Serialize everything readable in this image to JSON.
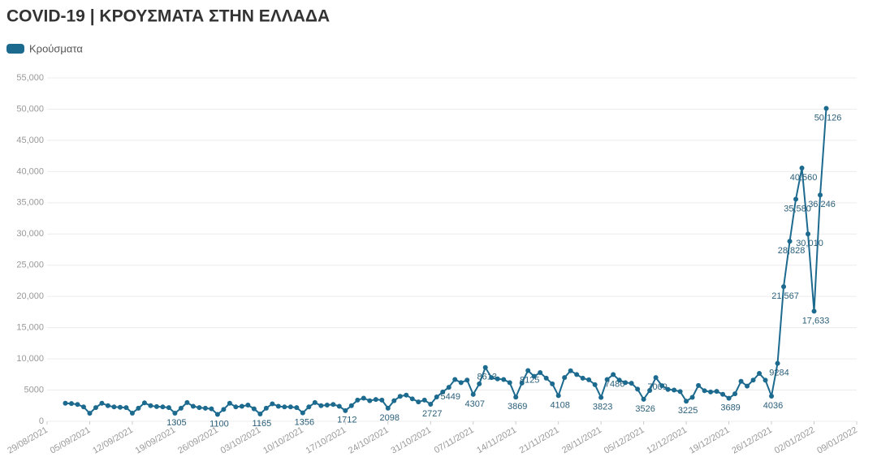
{
  "chart_data": {
    "type": "line",
    "title": "COVID-19 | ΚΡΟΥΣΜΑΤΑ ΣΤΗΝ ΕΛΛΑΔΑ",
    "xlim": [
      "29/08/2021",
      "09/01/2022"
    ],
    "xticks": [
      "29/08/2021",
      "05/09/2021",
      "12/09/2021",
      "19/09/2021",
      "26/09/2021",
      "03/10/2021",
      "10/10/2021",
      "17/10/2021",
      "24/10/2021",
      "31/10/2021",
      "07/11/2021",
      "14/11/2021",
      "21/11/2021",
      "28/11/2021",
      "05/12/2021",
      "12/12/2021",
      "19/12/2021",
      "26/12/2021",
      "02/01/2022",
      "09/01/2022"
    ],
    "ylim": [
      0,
      55000
    ],
    "yticks": [
      0,
      {
        "value": 5000,
        "label": "5000"
      },
      {
        "value": 10000,
        "label": "10,000"
      },
      {
        "value": 15000,
        "label": "15,000"
      },
      {
        "value": 20000,
        "label": "20,000"
      },
      {
        "value": 25000,
        "label": "25,000"
      },
      {
        "value": 30000,
        "label": "30,000"
      },
      {
        "value": 35000,
        "label": "35,000"
      },
      {
        "value": 40000,
        "label": "40,000"
      },
      {
        "value": 45000,
        "label": "45,000"
      },
      {
        "value": 50000,
        "label": "50,000"
      },
      {
        "value": 55000,
        "label": "55,000"
      }
    ],
    "grid": true,
    "legend": "top-left",
    "x": [
      "01/09/2021",
      "02/09/2021",
      "03/09/2021",
      "04/09/2021",
      "05/09/2021",
      "06/09/2021",
      "07/09/2021",
      "08/09/2021",
      "09/09/2021",
      "10/09/2021",
      "11/09/2021",
      "12/09/2021",
      "13/09/2021",
      "14/09/2021",
      "15/09/2021",
      "16/09/2021",
      "17/09/2021",
      "18/09/2021",
      "19/09/2021",
      "20/09/2021",
      "21/09/2021",
      "22/09/2021",
      "23/09/2021",
      "24/09/2021",
      "25/09/2021",
      "26/09/2021",
      "27/09/2021",
      "28/09/2021",
      "29/09/2021",
      "30/09/2021",
      "01/10/2021",
      "02/10/2021",
      "03/10/2021",
      "04/10/2021",
      "05/10/2021",
      "06/10/2021",
      "07/10/2021",
      "08/10/2021",
      "09/10/2021",
      "10/10/2021",
      "11/10/2021",
      "12/10/2021",
      "13/10/2021",
      "14/10/2021",
      "15/10/2021",
      "16/10/2021",
      "17/10/2021",
      "18/10/2021",
      "19/10/2021",
      "20/10/2021",
      "21/10/2021",
      "22/10/2021",
      "23/10/2021",
      "24/10/2021",
      "25/10/2021",
      "26/10/2021",
      "27/10/2021",
      "28/10/2021",
      "29/10/2021",
      "30/10/2021",
      "31/10/2021",
      "01/11/2021",
      "02/11/2021",
      "03/11/2021",
      "04/11/2021",
      "05/11/2021",
      "06/11/2021",
      "07/11/2021",
      "08/11/2021",
      "09/11/2021",
      "10/11/2021",
      "11/11/2021",
      "12/11/2021",
      "13/11/2021",
      "14/11/2021",
      "15/11/2021",
      "16/11/2021",
      "17/11/2021",
      "18/11/2021",
      "19/11/2021",
      "20/11/2021",
      "21/11/2021",
      "22/11/2021",
      "23/11/2021",
      "24/11/2021",
      "25/11/2021",
      "26/11/2021",
      "27/11/2021",
      "28/11/2021",
      "29/11/2021",
      "30/11/2021",
      "01/12/2021",
      "02/12/2021",
      "03/12/2021",
      "04/12/2021",
      "05/12/2021",
      "06/12/2021",
      "07/12/2021",
      "08/12/2021",
      "09/12/2021",
      "10/12/2021",
      "11/12/2021",
      "12/12/2021",
      "13/12/2021",
      "14/12/2021",
      "15/12/2021",
      "16/12/2021",
      "17/12/2021",
      "18/12/2021",
      "19/12/2021",
      "20/12/2021",
      "21/12/2021",
      "22/12/2021",
      "23/12/2021",
      "24/12/2021",
      "25/12/2021",
      "26/12/2021",
      "27/12/2021",
      "28/12/2021",
      "29/12/2021",
      "30/12/2021",
      "31/12/2021",
      "01/01/2022",
      "02/01/2022",
      "03/01/2022",
      "04/01/2022"
    ],
    "series": [
      {
        "name": "Κρούσματα",
        "color": "#1d6a8f",
        "values": [
          2900,
          2850,
          2700,
          2300,
          1277,
          2200,
          2900,
          2500,
          2300,
          2250,
          2200,
          1306,
          2100,
          2950,
          2500,
          2350,
          2300,
          2200,
          1305,
          2100,
          3000,
          2400,
          2200,
          2100,
          2000,
          1100,
          1900,
          2900,
          2300,
          2400,
          2600,
          2000,
          1165,
          2100,
          2800,
          2400,
          2300,
          2300,
          2200,
          1356,
          2300,
          3000,
          2500,
          2600,
          2700,
          2400,
          1712,
          2500,
          3400,
          3700,
          3300,
          3500,
          3400,
          2098,
          3300,
          4000,
          4200,
          3600,
          3100,
          3400,
          2727,
          3900,
          4700,
          5449,
          6700,
          6200,
          6600,
          4307,
          6000,
          8613,
          7000,
          6800,
          6700,
          6200,
          3869,
          6130,
          8125,
          7200,
          7805,
          6900,
          5993,
          4108,
          7000,
          8100,
          7500,
          6900,
          6650,
          5870,
          3823,
          6700,
          7486,
          6600,
          6200,
          6100,
          5150,
          3526,
          4943,
          7009,
          5700,
          5100,
          5000,
          4761,
          3225,
          3841,
          5736,
          4900,
          4700,
          4800,
          4325,
          3689,
          4400,
          6400,
          5641,
          6600,
          7665,
          6590,
          4036,
          9284,
          21567,
          28828,
          35580,
          40560,
          30010,
          17633,
          36246,
          50126
        ],
        "value_labels": [
          null,
          null,
          null,
          null,
          null,
          null,
          null,
          null,
          null,
          null,
          null,
          null,
          null,
          null,
          null,
          null,
          null,
          null,
          "1305",
          null,
          null,
          null,
          null,
          null,
          null,
          "1100",
          null,
          null,
          null,
          null,
          null,
          null,
          "1165",
          null,
          null,
          null,
          null,
          null,
          null,
          "1356",
          null,
          null,
          null,
          null,
          null,
          null,
          "1712",
          null,
          null,
          null,
          null,
          null,
          null,
          "2098",
          null,
          null,
          null,
          null,
          null,
          null,
          "2727",
          null,
          null,
          "5449",
          null,
          null,
          null,
          "4307",
          null,
          "8613",
          null,
          null,
          null,
          null,
          "3869",
          null,
          "8125",
          null,
          null,
          null,
          null,
          "4108",
          null,
          null,
          null,
          null,
          null,
          null,
          "3823",
          null,
          "7486",
          null,
          null,
          null,
          null,
          "3526",
          null,
          "7009",
          null,
          null,
          null,
          null,
          "3225",
          null,
          null,
          null,
          null,
          null,
          null,
          "3689",
          null,
          null,
          null,
          null,
          null,
          null,
          "4036",
          "9284",
          "21,567",
          "28,828",
          "35,580",
          "40,560",
          "30,010",
          "17,633",
          "36,246",
          "50,126"
        ]
      }
    ]
  }
}
